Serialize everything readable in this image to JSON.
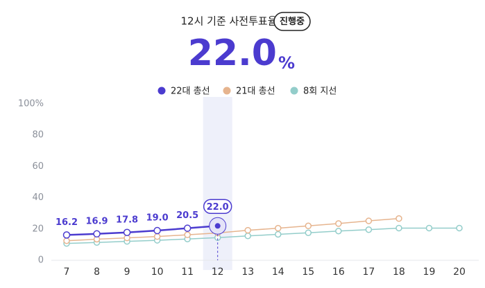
{
  "chart_data": {
    "type": "line",
    "title": "12시 기준 사전투표율",
    "badge": "진행중",
    "headline": "22.0",
    "headline_unit": "%",
    "categories": [
      "7",
      "8",
      "9",
      "10",
      "11",
      "12",
      "13",
      "14",
      "15",
      "16",
      "17",
      "18",
      "19",
      "20"
    ],
    "series": [
      {
        "name": "22대 총선",
        "color": "#4b3bcf",
        "values": [
          16.2,
          16.9,
          17.8,
          19.0,
          20.5,
          22.0,
          null,
          null,
          null,
          null,
          null,
          null,
          null,
          null
        ],
        "value_labels": [
          "16.2",
          "16.9",
          "17.8",
          "19.0",
          "20.5",
          "22.0",
          null,
          null,
          null,
          null,
          null,
          null,
          null,
          null
        ]
      },
      {
        "name": "21대 총선",
        "color": "#e6b48e",
        "values": [
          12.5,
          13.5,
          14.3,
          15.2,
          16.3,
          17.5,
          19.2,
          20.5,
          22.0,
          23.5,
          25.2,
          26.7,
          null,
          null
        ]
      },
      {
        "name": "8회 지선",
        "color": "#93cdca",
        "values": [
          10.8,
          11.4,
          12.1,
          12.8,
          13.6,
          14.5,
          15.6,
          16.6,
          17.6,
          18.7,
          19.6,
          20.6,
          20.6,
          20.6
        ]
      }
    ],
    "ylim": [
      0,
      100
    ],
    "yticks": [
      0,
      20,
      40,
      60,
      80,
      {
        "value": 100,
        "label": "100%"
      }
    ]
  }
}
